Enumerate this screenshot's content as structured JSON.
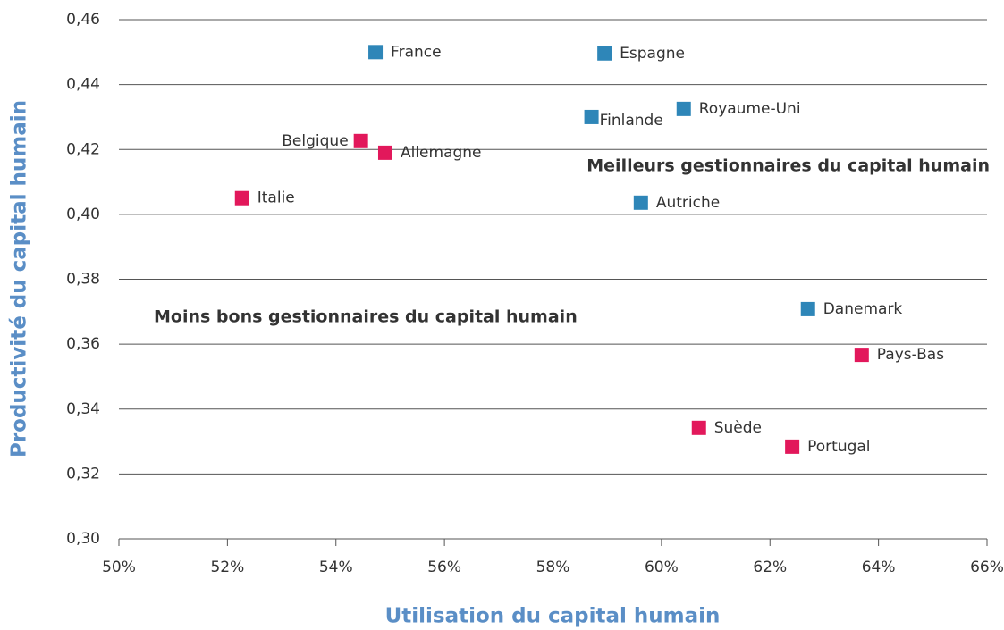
{
  "chart_data": {
    "type": "scatter",
    "xlabel": "Utilisation du capital humain",
    "ylabel": "Productivité du capital humain",
    "annotations": [
      {
        "text": "Meilleurs gestionnaires du capital humain",
        "color": "#5a8ec6"
      },
      {
        "text": "Moins bons gestionnaires du capital humain",
        "color": "#e2185b"
      }
    ],
    "labels": [
      "France",
      "Espagne",
      "Finlande",
      "Royaume-Uni",
      "Belgique",
      "Allemagne",
      "Italie",
      "Autriche",
      "Danemark",
      "Pays-Bas",
      "Suède",
      "Portugal"
    ],
    "x": [
      54.73,
      58.95,
      58.71,
      60.41,
      54.46,
      54.91,
      52.27,
      59.62,
      62.7,
      63.69,
      60.69,
      62.41
    ],
    "y": [
      0.45,
      0.4496,
      0.43,
      0.4325,
      0.4226,
      0.419,
      0.405,
      0.4036,
      0.3708,
      0.3567,
      0.3342,
      0.3284
    ],
    "colors": [
      "#2e86b8",
      "#2e86b8",
      "#2e86b8",
      "#2e86b8",
      "#e2185b",
      "#e2185b",
      "#e2185b",
      "#2e86b8",
      "#2e86b8",
      "#e2185b",
      "#e2185b",
      "#e2185b"
    ],
    "xlim": [
      50,
      66
    ],
    "xticks": [
      {
        "value": 50,
        "label": "50%"
      },
      {
        "value": 52,
        "label": "52%"
      },
      {
        "value": 54,
        "label": "54%"
      },
      {
        "value": 56,
        "label": "56%"
      },
      {
        "value": 58,
        "label": "58%"
      },
      {
        "value": 60,
        "label": "60%"
      },
      {
        "value": 62,
        "label": "62%"
      },
      {
        "value": 64,
        "label": "64%"
      },
      {
        "value": 66,
        "label": "66%"
      }
    ],
    "ylim": [
      0.3,
      0.46
    ],
    "yticks": [
      {
        "value": 0.3,
        "label": "0,30"
      },
      {
        "value": 0.32,
        "label": "0,32"
      },
      {
        "value": 0.34,
        "label": "0,34"
      },
      {
        "value": 0.36,
        "label": "0,36"
      },
      {
        "value": 0.38,
        "label": "0,38"
      },
      {
        "value": 0.4,
        "label": "0,40"
      },
      {
        "value": 0.42,
        "label": "0,42"
      },
      {
        "value": 0.44,
        "label": "0,44"
      },
      {
        "value": 0.46,
        "label": "0,46"
      }
    ],
    "grid": true
  }
}
